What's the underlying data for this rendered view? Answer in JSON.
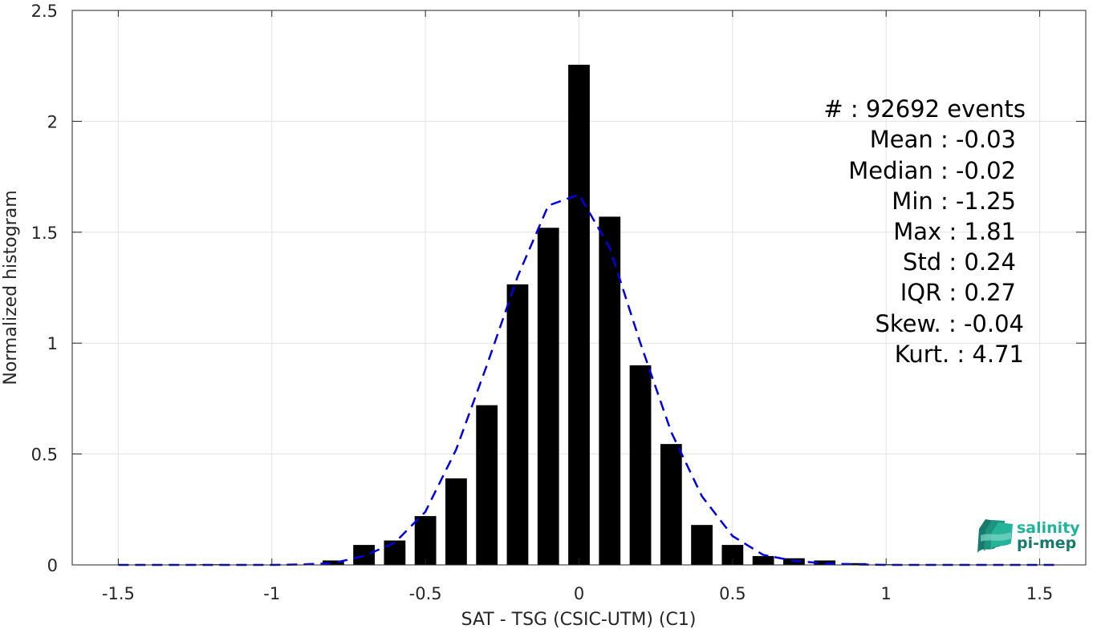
{
  "chart_data": {
    "type": "bar",
    "xlabel": "SAT - TSG (CSIC-UTM) (C1)",
    "ylabel": "Normalized histogram",
    "xlim": [
      -1.65,
      1.65
    ],
    "ylim": [
      0,
      2.5
    ],
    "xticks": [
      -1.5,
      -1,
      -0.5,
      0,
      0.5,
      1,
      1.5
    ],
    "xtick_labels": [
      "-1.5",
      "-1",
      "-0.5",
      "0",
      "0.5",
      "1",
      "1.5"
    ],
    "yticks": [
      0,
      0.5,
      1,
      1.5,
      2,
      2.5
    ],
    "ytick_labels": [
      "0",
      "0.5",
      "1",
      "1.5",
      "2",
      "2.5"
    ],
    "grid": true,
    "bar_width": 0.07,
    "bar_color": "#000000",
    "bars": [
      {
        "x": -1.2,
        "y": 0.003
      },
      {
        "x": -0.8,
        "y": 0.02
      },
      {
        "x": -0.7,
        "y": 0.09
      },
      {
        "x": -0.6,
        "y": 0.11
      },
      {
        "x": -0.5,
        "y": 0.22
      },
      {
        "x": -0.4,
        "y": 0.39
      },
      {
        "x": -0.3,
        "y": 0.72
      },
      {
        "x": -0.2,
        "y": 1.265
      },
      {
        "x": -0.1,
        "y": 1.52
      },
      {
        "x": 0.0,
        "y": 2.255
      },
      {
        "x": 0.1,
        "y": 1.57
      },
      {
        "x": 0.2,
        "y": 0.9
      },
      {
        "x": 0.3,
        "y": 0.545
      },
      {
        "x": 0.4,
        "y": 0.18
      },
      {
        "x": 0.5,
        "y": 0.09
      },
      {
        "x": 0.6,
        "y": 0.04
      },
      {
        "x": 0.7,
        "y": 0.03
      },
      {
        "x": 0.8,
        "y": 0.02
      },
      {
        "x": 0.9,
        "y": 0.008
      },
      {
        "x": 1.0,
        "y": 0.003
      }
    ],
    "fit_curve": {
      "style": "dashed",
      "color": "#0000e6",
      "x": [
        -1.5,
        -1.3,
        -1.1,
        -1.0,
        -0.9,
        -0.8,
        -0.7,
        -0.6,
        -0.5,
        -0.4,
        -0.3,
        -0.2,
        -0.1,
        0.0,
        0.1,
        0.2,
        0.3,
        0.4,
        0.5,
        0.6,
        0.7,
        0.8,
        0.9,
        1.0,
        1.2,
        1.4,
        1.55
      ],
      "y": [
        0.0,
        0.0,
        0.0,
        0.0,
        0.002,
        0.008,
        0.04,
        0.1,
        0.24,
        0.52,
        0.9,
        1.3,
        1.62,
        1.67,
        1.43,
        1.0,
        0.6,
        0.31,
        0.13,
        0.045,
        0.018,
        0.007,
        0.002,
        0.0,
        0.0,
        0.0,
        0.0
      ]
    },
    "stats": [
      "#  : 92692 events",
      "Mean : -0.03",
      "Median : -0.02",
      "Min : -1.25",
      "Max : 1.81",
      "Std : 0.24",
      "IQR : 0.27",
      "Skew. : -0.04",
      "Kurt. : 4.71"
    ]
  },
  "logo": {
    "line1": "salinity",
    "line2": "pi-mep",
    "color_top": "#1fb39a",
    "color_bottom": "#177a6e"
  }
}
